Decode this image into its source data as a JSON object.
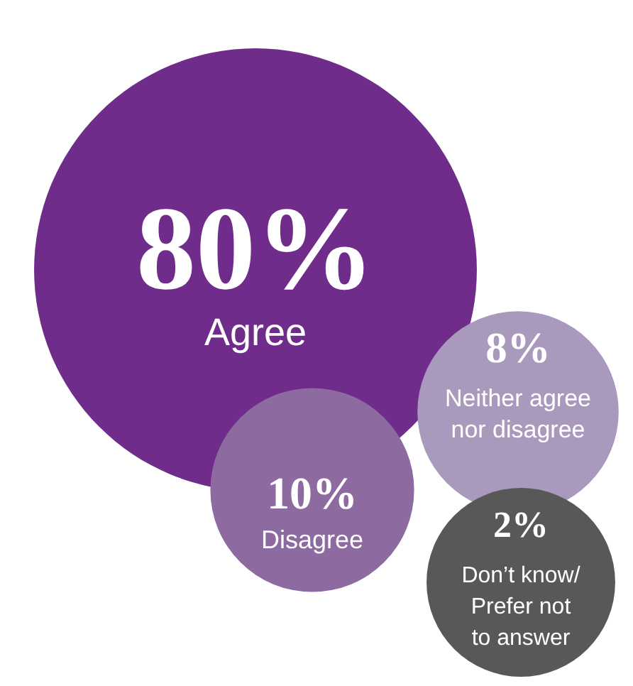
{
  "chart_data": {
    "type": "other",
    "categories": [
      "Agree",
      "Disagree",
      "Neither agree nor disagree",
      "Don’t know/ Prefer not to answer"
    ],
    "values": [
      80,
      10,
      8,
      2
    ],
    "value_labels": [
      "80%",
      "10%",
      "8%",
      "2%"
    ],
    "colors": [
      "#6f2c8a",
      "#8d6a9f",
      "#a999bd",
      "#585858"
    ]
  }
}
